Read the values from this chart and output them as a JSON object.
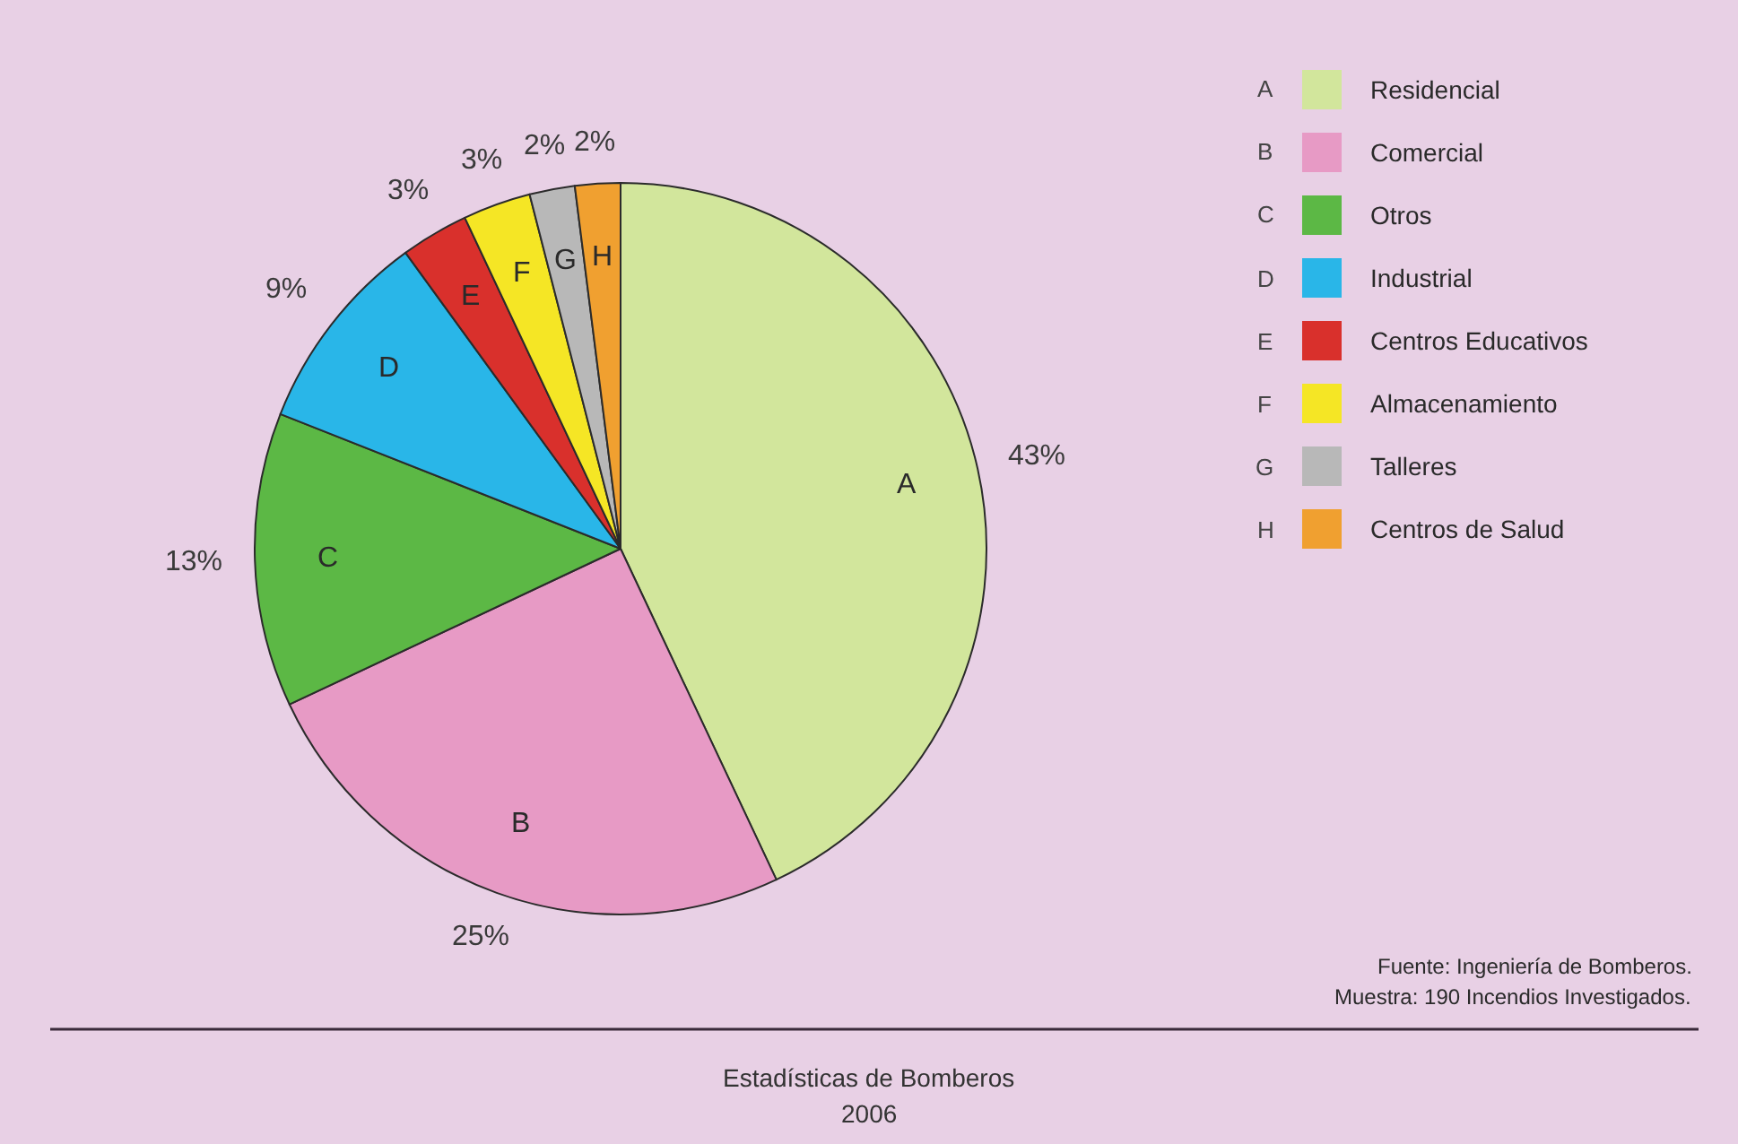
{
  "chart_data": {
    "type": "pie",
    "title": "Estadísticas de Bomberos",
    "subtitle": "2006",
    "categories": [
      "Residencial",
      "Comercial",
      "Otros",
      "Industrial",
      "Centros Educativos",
      "Almacenamiento",
      "Talleres",
      "Centros de Salud"
    ],
    "values": [
      43,
      25,
      13,
      9,
      3,
      3,
      2,
      2
    ],
    "colors": [
      "#d2e69c",
      "#e79ac5",
      "#5cb845",
      "#29b6e8",
      "#d9302c",
      "#f5e625",
      "#b8b8b8",
      "#f0a030"
    ],
    "value_labels": [
      "43%",
      "25%",
      "13%",
      "9%",
      "3%",
      "3%",
      "2%",
      "2%"
    ],
    "annotations": [
      {
        "text": "A",
        "x": "Residencial"
      },
      {
        "text": "B",
        "x": "Comercial"
      },
      {
        "text": "C",
        "x": "Otros"
      },
      {
        "text": "D",
        "x": "Industrial"
      },
      {
        "text": "E",
        "x": "Centros Educativos"
      },
      {
        "text": "F",
        "x": "Almacenamiento"
      },
      {
        "text": "G",
        "x": "Talleres"
      },
      {
        "text": "H",
        "x": "Centros de Salud"
      },
      "Fuente: Ingeniería de Bomberos.",
      "Muestra: 190 Incendios Investigados."
    ],
    "legend": "top right"
  }
}
